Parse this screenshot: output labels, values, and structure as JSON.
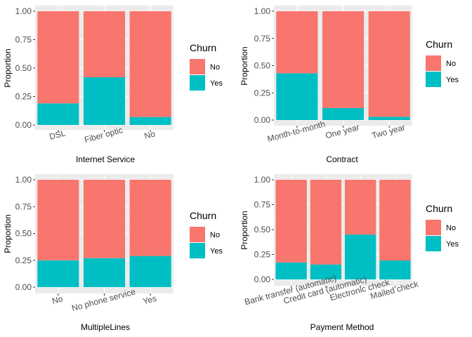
{
  "chart_data": [
    {
      "type": "bar",
      "stacked": true,
      "xlabel": "Internet Service",
      "ylabel": "Proportion",
      "ylim": [
        0,
        1
      ],
      "yticks": [
        "0.00",
        "0.25",
        "0.50",
        "0.75",
        "1.00"
      ],
      "categories": [
        "DSL",
        "Fiber optic",
        "No"
      ],
      "series": [
        {
          "name": "No",
          "values": [
            0.81,
            0.58,
            0.93
          ]
        },
        {
          "name": "Yes",
          "values": [
            0.19,
            0.42,
            0.07
          ]
        }
      ],
      "legend": {
        "title": "Churn",
        "placement": "right"
      }
    },
    {
      "type": "bar",
      "stacked": true,
      "xlabel": "Contract",
      "ylabel": "Proportion",
      "ylim": [
        0,
        1
      ],
      "yticks": [
        "0.00",
        "0.25",
        "0.50",
        "0.75",
        "1.00"
      ],
      "categories": [
        "Month-to-month",
        "One year",
        "Two year"
      ],
      "series": [
        {
          "name": "No",
          "values": [
            0.57,
            0.89,
            0.97
          ]
        },
        {
          "name": "Yes",
          "values": [
            0.43,
            0.11,
            0.03
          ]
        }
      ],
      "legend": {
        "title": "Churn",
        "placement": "right"
      }
    },
    {
      "type": "bar",
      "stacked": true,
      "xlabel": "MultipleLines",
      "ylabel": "Proportion",
      "ylim": [
        0,
        1
      ],
      "yticks": [
        "0.00",
        "0.25",
        "0.50",
        "0.75",
        "1.00"
      ],
      "categories": [
        "No",
        "No phone service",
        "Yes"
      ],
      "series": [
        {
          "name": "No",
          "values": [
            0.75,
            0.73,
            0.71
          ]
        },
        {
          "name": "Yes",
          "values": [
            0.25,
            0.27,
            0.29
          ]
        }
      ],
      "legend": {
        "title": "Churn",
        "placement": "right"
      }
    },
    {
      "type": "bar",
      "stacked": true,
      "xlabel": "Payment Method",
      "ylabel": "Proportion",
      "ylim": [
        0,
        1
      ],
      "yticks": [
        "0.00",
        "0.25",
        "0.50",
        "0.75",
        "1.00"
      ],
      "categories": [
        "Bank transfer (automatic)",
        "Credit card (automatic)",
        "Electronic check",
        "Mailed check"
      ],
      "series": [
        {
          "name": "No",
          "values": [
            0.83,
            0.85,
            0.55,
            0.81
          ]
        },
        {
          "name": "Yes",
          "values": [
            0.17,
            0.15,
            0.45,
            0.19
          ]
        }
      ],
      "legend": {
        "title": "Churn",
        "placement": "right"
      }
    }
  ],
  "colors": {
    "No": "#F8766D",
    "Yes": "#00BFC4",
    "panel": "#EBEBEB",
    "grid": "#FFFFFF",
    "text": "#4D4D4D",
    "title": "#000000"
  }
}
